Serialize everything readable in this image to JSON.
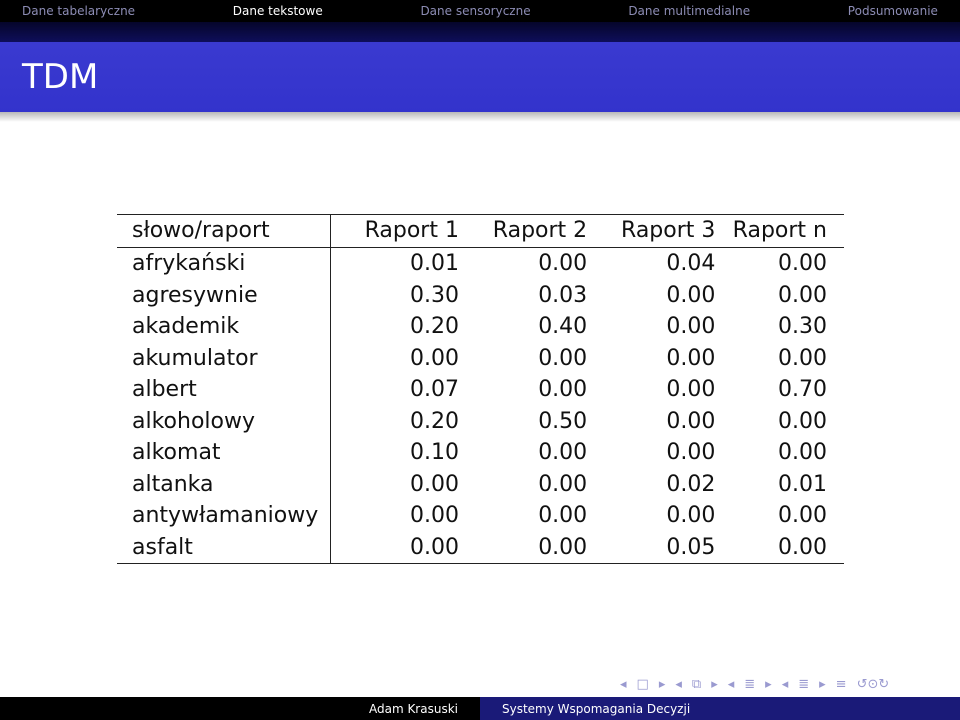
{
  "nav": {
    "items": [
      "Dane tabelaryczne",
      "Dane tekstowe",
      "Dane sensoryczne",
      "Dane multimedialne",
      "Podsumowanie"
    ],
    "active_index": 1
  },
  "frame": {
    "title": "TDM"
  },
  "table": {
    "columns": [
      "słowo/raport",
      "Raport 1",
      "Raport 2",
      "Raport 3",
      "Raport n"
    ],
    "rows": [
      [
        "afrykański",
        "0.01",
        "0.00",
        "0.04",
        "0.00"
      ],
      [
        "agresywnie",
        "0.30",
        "0.03",
        "0.00",
        "0.00"
      ],
      [
        "akademik",
        "0.20",
        "0.40",
        "0.00",
        "0.30"
      ],
      [
        "akumulator",
        "0.00",
        "0.00",
        "0.00",
        "0.00"
      ],
      [
        "albert",
        "0.07",
        "0.00",
        "0.00",
        "0.70"
      ],
      [
        "alkoholowy",
        "0.20",
        "0.50",
        "0.00",
        "0.00"
      ],
      [
        "alkomat",
        "0.10",
        "0.00",
        "0.00",
        "0.00"
      ],
      [
        "altanka",
        "0.00",
        "0.00",
        "0.02",
        "0.01"
      ],
      [
        "antywłamaniowy",
        "0.00",
        "0.00",
        "0.00",
        "0.00"
      ],
      [
        "asfalt",
        "0.00",
        "0.00",
        "0.05",
        "0.00"
      ]
    ]
  },
  "navsymbols": {
    "frame_prev": "◂",
    "frame_icon": "□",
    "frame_next": "▸",
    "subsec_prev": "◂",
    "subsec_icon": "⧉",
    "subsec_next": "▸",
    "sec_prev": "◂",
    "sec_icon": "≣",
    "sec_next": "▸",
    "part_prev": "◂",
    "part_icon": "≣",
    "part_next": "▸",
    "doc_icon": "≡",
    "search_icon": "↺⊙↻"
  },
  "footer": {
    "author": "Adam Krasuski",
    "title": "Systemy Wspomagania Decyzji"
  },
  "colors": {
    "nav_bg": "#000000",
    "title_bg": "#3333cc",
    "footer_right_bg": "#1a1a78",
    "nav_inactive": "#8c8cb4"
  }
}
